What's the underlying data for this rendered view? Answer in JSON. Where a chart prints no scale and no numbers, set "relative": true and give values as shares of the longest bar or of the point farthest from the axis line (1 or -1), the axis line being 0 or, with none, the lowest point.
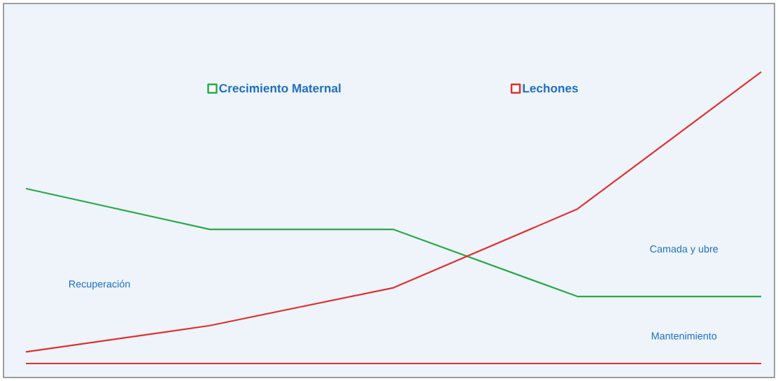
{
  "chart_data": {
    "type": "line",
    "relative": true,
    "legend": "top",
    "categories": [
      null,
      null,
      null,
      null,
      null
    ],
    "series": [
      {
        "name": "Crecimiento Maternal",
        "color": "#2ca84a",
        "values": [
          0.6,
          0.46,
          0.46,
          0.23,
          0.23
        ]
      },
      {
        "name": "Lechones",
        "color": "#e03030",
        "values": [
          0.04,
          0.13,
          0.26,
          0.53,
          1
        ]
      }
    ],
    "annotations": [
      "Recuperación",
      "Camada y ubre",
      "Mantenimiento"
    ]
  }
}
